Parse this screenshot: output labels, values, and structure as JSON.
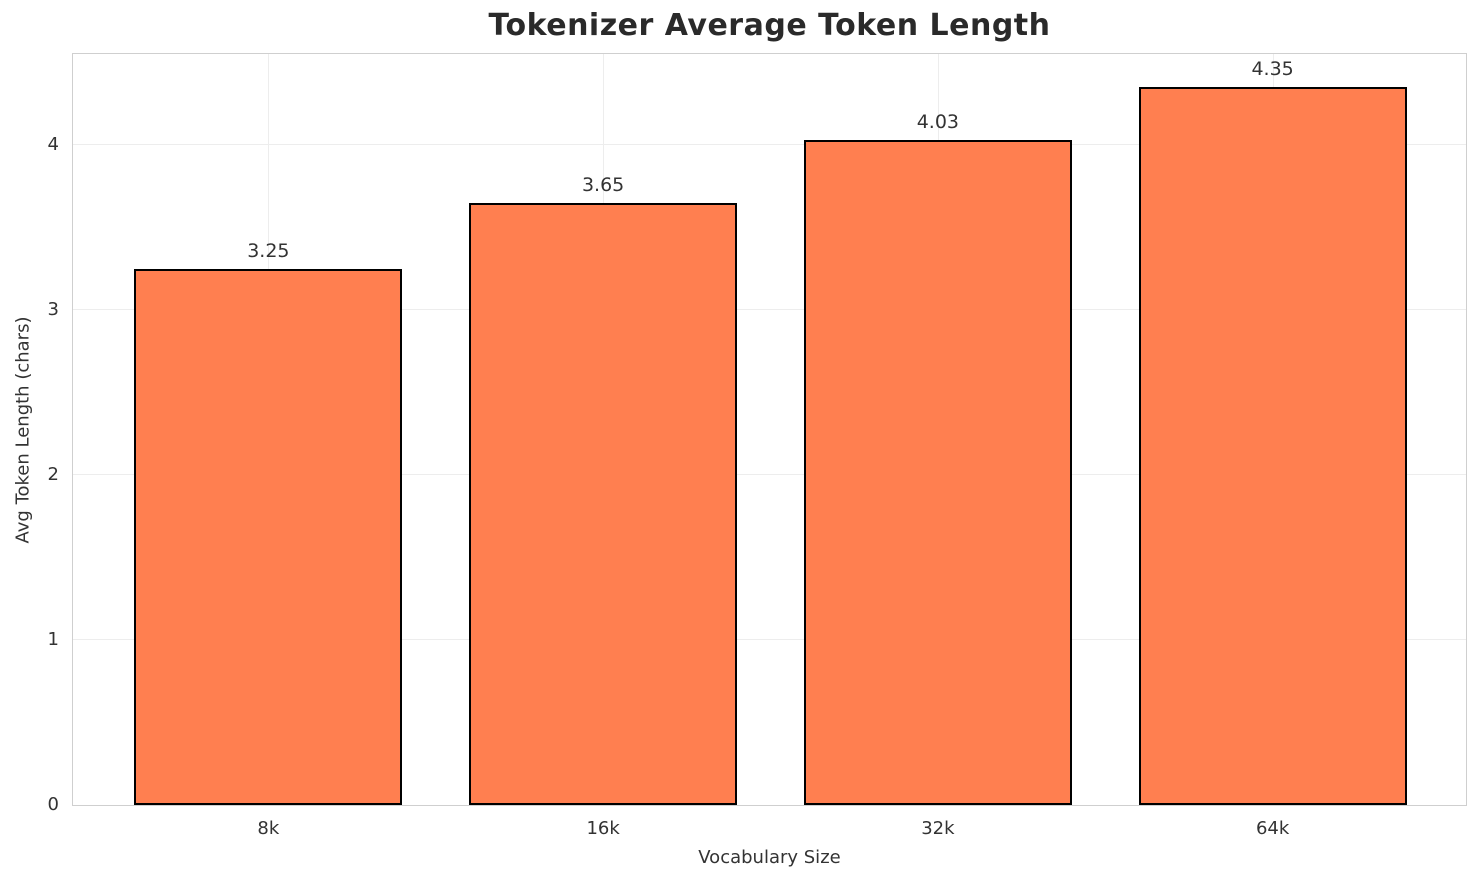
{
  "chart_data": {
    "type": "bar",
    "title": "Tokenizer Average Token Length",
    "xlabel": "Vocabulary Size",
    "ylabel": "Avg Token Length (chars)",
    "categories": [
      "8k",
      "16k",
      "32k",
      "64k"
    ],
    "values": [
      3.25,
      3.65,
      4.03,
      4.35
    ],
    "value_labels": [
      "3.25",
      "3.65",
      "4.03",
      "4.35"
    ],
    "yticks": [
      0,
      1,
      2,
      3,
      4
    ],
    "ytick_labels": [
      "0",
      "1",
      "2",
      "3",
      "4"
    ],
    "ylim": [
      0,
      4.55
    ],
    "grid": true,
    "legend": "none",
    "bar_color": "#FF7F50",
    "bar_edge_color": "#000000"
  }
}
